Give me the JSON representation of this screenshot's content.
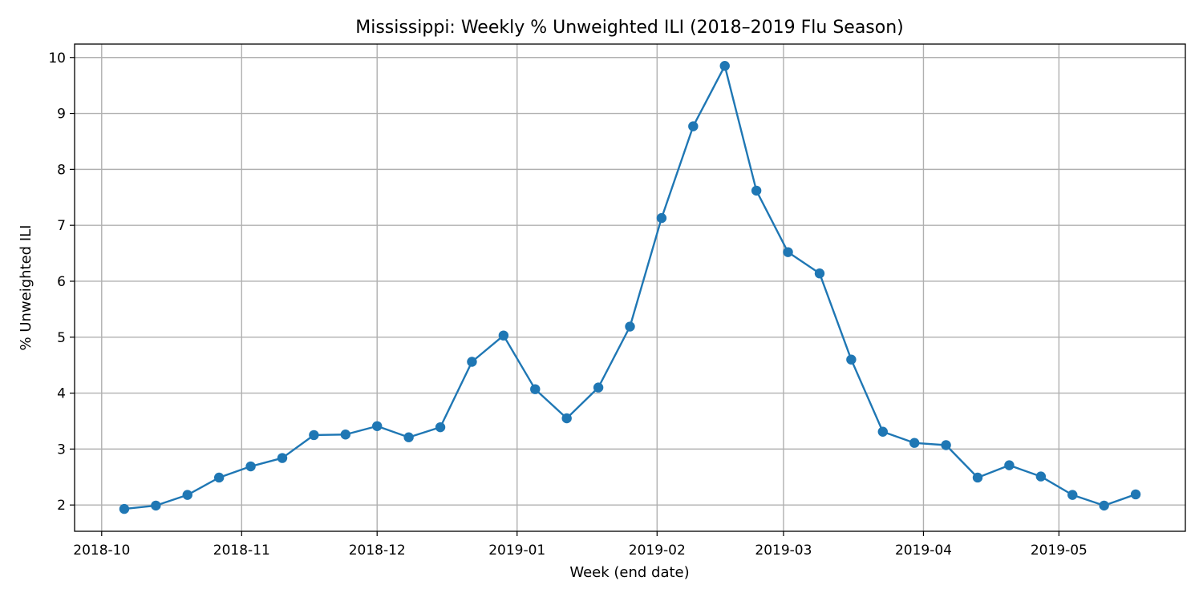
{
  "chart_data": {
    "type": "line",
    "title": "Mississippi: Weekly % Unweighted ILI (2018–2019 Flu Season)",
    "xlabel": "Week (end date)",
    "ylabel": "% Unweighted ILI",
    "x_ticks": [
      "2018-10",
      "2018-11",
      "2018-12",
      "2019-01",
      "2019-02",
      "2019-03",
      "2019-04",
      "2019-05"
    ],
    "y_ticks": [
      2,
      3,
      4,
      5,
      6,
      7,
      8,
      9,
      10
    ],
    "xlim": [
      "2018-09-25",
      "2019-05-29"
    ],
    "ylim": [
      1.53,
      10.24
    ],
    "grid": true,
    "colors": {
      "line": "#1f77b4"
    },
    "series": [
      {
        "x": [
          "2018-10-06",
          "2018-10-13",
          "2018-10-20",
          "2018-10-27",
          "2018-11-03",
          "2018-11-10",
          "2018-11-17",
          "2018-11-24",
          "2018-12-01",
          "2018-12-08",
          "2018-12-15",
          "2018-12-22",
          "2018-12-29",
          "2019-01-05",
          "2019-01-12",
          "2019-01-19",
          "2019-01-26",
          "2019-02-02",
          "2019-02-09",
          "2019-02-16",
          "2019-02-23",
          "2019-03-02",
          "2019-03-09",
          "2019-03-16",
          "2019-03-23",
          "2019-03-30",
          "2019-04-06",
          "2019-04-13",
          "2019-04-20",
          "2019-04-27",
          "2019-05-04",
          "2019-05-11",
          "2019-05-18"
        ],
        "values": [
          1.93,
          1.99,
          2.18,
          2.49,
          2.69,
          2.84,
          3.25,
          3.26,
          3.41,
          3.21,
          3.39,
          4.56,
          5.03,
          4.07,
          3.55,
          4.1,
          5.19,
          7.13,
          8.77,
          9.85,
          7.62,
          6.52,
          6.14,
          4.6,
          3.31,
          3.11,
          3.07,
          2.49,
          2.71,
          2.51,
          2.18,
          1.99,
          2.19
        ]
      }
    ]
  }
}
